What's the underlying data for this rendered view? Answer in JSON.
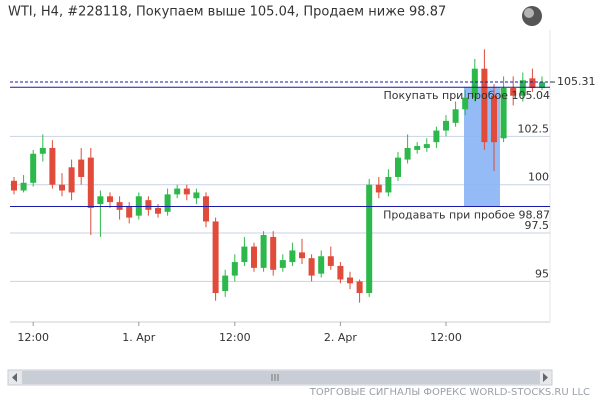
{
  "chart_data": {
    "type": "candlestick",
    "title": "WTI, H4, #228118, Покупаем выше 105.04, Продаем ниже 98.87",
    "footer": "ТОРГОВЫЕ СИГНАЛЫ ФОРЕКС WORLD-STOCKS.RU LLC",
    "categories": [
      null,
      null,
      "12:00",
      null,
      null,
      null,
      null,
      null,
      null,
      null,
      null,
      null,
      null,
      "1. Apr",
      null,
      null,
      null,
      null,
      null,
      null,
      null,
      null,
      null,
      "12:00",
      null,
      null,
      null,
      null,
      null,
      null,
      null,
      null,
      null,
      null,
      "2. Apr",
      null,
      null,
      null,
      null,
      null,
      null,
      null,
      null,
      null,
      null,
      "12:00",
      null,
      null,
      null,
      null,
      null,
      null,
      null,
      null,
      null,
      null
    ],
    "open": [
      100.2,
      99.7,
      100.1,
      101.6,
      101.9,
      100.0,
      100.9,
      101.3,
      101.4,
      99.0,
      99.4,
      99.1,
      98.9,
      98.4,
      99.2,
      98.8,
      98.6,
      99.5,
      99.8,
      99.3,
      99.4,
      98.1,
      94.5,
      95.3,
      96.0,
      96.8,
      95.7,
      97.3,
      95.7,
      96.0,
      96.5,
      96.2,
      95.4,
      96.3,
      95.8,
      95.2,
      95.0,
      94.4,
      100.0,
      99.6,
      100.4,
      101.3,
      101.8,
      101.9,
      102.2,
      102.8,
      103.2,
      103.9,
      104.5,
      106.0,
      104.6,
      102.4,
      105.0,
      104.6,
      105.5,
      105.0
    ],
    "high": [
      100.4,
      100.5,
      101.8,
      102.6,
      102.3,
      100.6,
      101.3,
      101.9,
      101.9,
      99.7,
      99.6,
      99.4,
      99.1,
      99.6,
      99.4,
      99.0,
      99.8,
      100.0,
      100.0,
      99.8,
      99.6,
      98.3,
      95.6,
      96.4,
      97.3,
      97.0,
      97.6,
      97.6,
      96.4,
      97.0,
      97.2,
      96.4,
      96.6,
      96.8,
      96.0,
      95.5,
      95.1,
      100.3,
      100.4,
      100.8,
      101.7,
      102.6,
      102.2,
      102.4,
      103.0,
      103.6,
      104.3,
      104.9,
      106.5,
      107.0,
      105.2,
      105.6,
      105.6,
      105.8,
      106.0,
      105.6
    ],
    "low": [
      99.5,
      99.6,
      99.9,
      101.2,
      99.8,
      99.4,
      99.2,
      100.0,
      97.4,
      97.3,
      98.8,
      98.2,
      98.0,
      98.2,
      98.4,
      98.3,
      98.4,
      99.3,
      99.2,
      99.0,
      97.8,
      94.0,
      94.2,
      95.0,
      95.8,
      95.5,
      95.5,
      95.3,
      95.5,
      95.8,
      95.9,
      95.0,
      95.2,
      95.6,
      94.9,
      94.6,
      93.9,
      94.2,
      99.3,
      99.4,
      100.2,
      101.1,
      101.6,
      101.7,
      101.9,
      102.5,
      103.0,
      103.6,
      104.3,
      101.8,
      100.7,
      102.2,
      104.1,
      104.3,
      104.8,
      104.9
    ],
    "close": [
      99.7,
      100.1,
      101.6,
      101.9,
      100.0,
      99.7,
      99.6,
      100.4,
      98.8,
      99.4,
      99.1,
      98.7,
      98.3,
      99.4,
      98.7,
      98.5,
      99.5,
      99.8,
      99.5,
      99.6,
      98.1,
      94.4,
      95.3,
      96.0,
      96.8,
      95.7,
      97.4,
      95.6,
      96.1,
      96.6,
      96.2,
      95.3,
      96.3,
      95.8,
      95.1,
      94.9,
      94.4,
      100.0,
      99.6,
      100.4,
      101.4,
      101.9,
      102.0,
      102.1,
      102.8,
      103.3,
      103.9,
      104.5,
      106.0,
      102.2,
      102.2,
      105.0,
      104.6,
      105.4,
      105.0,
      105.3
    ],
    "up_color": "#2cb84a",
    "down_color": "#e04b3a",
    "ylim": [
      92.9,
      108.0
    ],
    "yticks": [
      95,
      97.5,
      100,
      102.5
    ],
    "grid": true,
    "last_price": 105.31,
    "levels": [
      {
        "value": 105.04,
        "label": "Покупать при пробое 105.04",
        "color": "#1a1aa8"
      },
      {
        "value": 98.87,
        "label": "Продавать при пробое 98.87",
        "color": "#1a1aa8"
      }
    ]
  }
}
